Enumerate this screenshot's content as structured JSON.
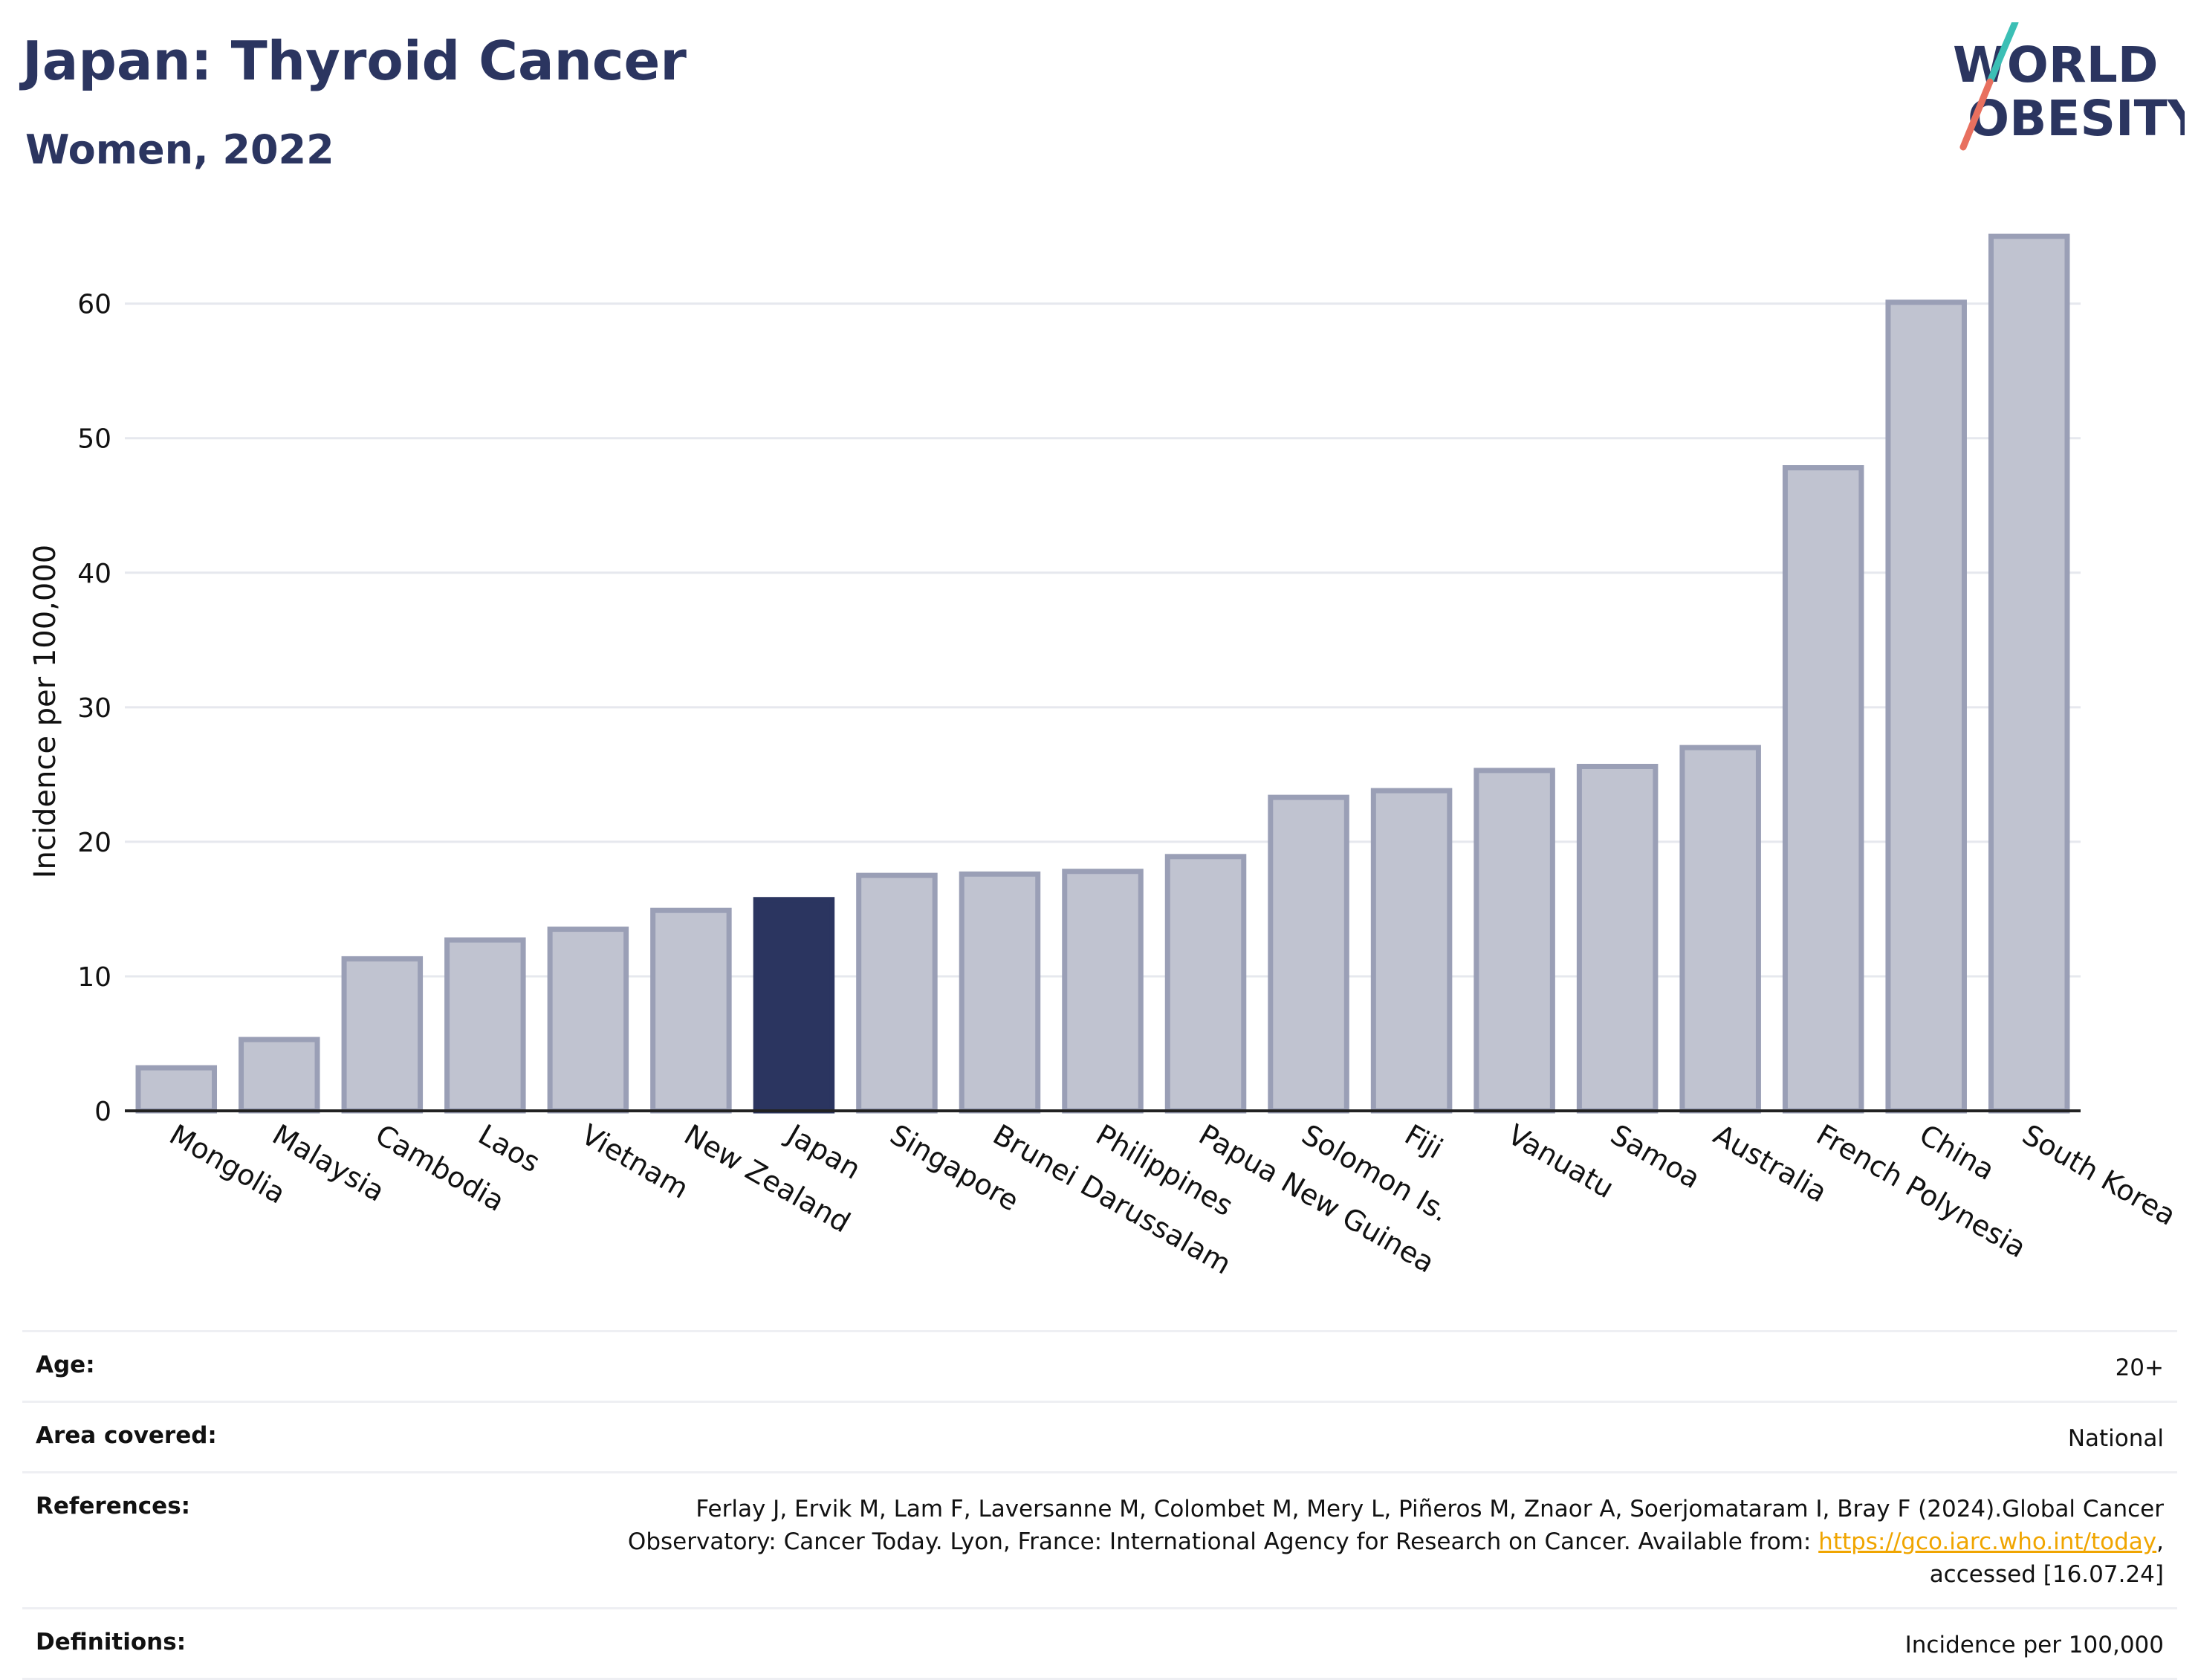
{
  "header": {
    "title": "Japan: Thyroid Cancer",
    "subtitle": "Women, 2022"
  },
  "logo": {
    "line1": "WORLD",
    "line2": "OBESITY",
    "colors": {
      "text": "#2b3560",
      "slash_top": "#3bbfb5",
      "slash_bottom": "#e8705f"
    }
  },
  "chart_data": {
    "type": "bar",
    "title": "Japan: Thyroid Cancer",
    "subtitle": "Women, 2022",
    "xlabel": "",
    "ylabel": "Incidence per 100,000",
    "ylim": [
      0,
      66
    ],
    "yticks": [
      0,
      10,
      20,
      30,
      40,
      50,
      60
    ],
    "grid": true,
    "categories": [
      "Mongolia",
      "Malaysia",
      "Cambodia",
      "Laos",
      "Vietnam",
      "New Zealand",
      "Japan",
      "Singapore",
      "Brunei Darussalam",
      "Philippines",
      "Papua New Guinea",
      "Solomon Is.",
      "Fiji",
      "Vanuatu",
      "Samoa",
      "Australia",
      "French Polynesia",
      "China",
      "South Korea"
    ],
    "values": [
      3.2,
      5.3,
      11.3,
      12.7,
      13.5,
      14.9,
      15.7,
      17.5,
      17.6,
      17.8,
      18.9,
      23.3,
      23.8,
      25.3,
      25.6,
      27.0,
      47.8,
      60.1,
      65.0
    ],
    "highlight": "Japan",
    "colors": {
      "bar": "#c0c3d0",
      "bar_edge": "#9a9fb6",
      "highlight": "#2b3560",
      "grid": "#e6e8ee",
      "axis": "#222222"
    }
  },
  "meta": {
    "age_label": "Age:",
    "age_value": "20+",
    "area_label": "Area covered:",
    "area_value": "National",
    "references_label": "References:",
    "references_line1": "Ferlay J, Ervik M, Lam F, Laversanne M, Colombet M, Mery L, Piñeros M, Znaor A, Soerjomataram I, Bray F (2024).Global Cancer",
    "references_line2": "Observatory: Cancer Today. Lyon, France: International Agency for Research on Cancer. Available from: ",
    "references_link": "https://gco.iarc.who.int/today",
    "references_line2_end": ",",
    "references_line3": "accessed [16.07.24]",
    "definitions_label": "Definitions:",
    "definitions_value": "Incidence per 100,000"
  }
}
